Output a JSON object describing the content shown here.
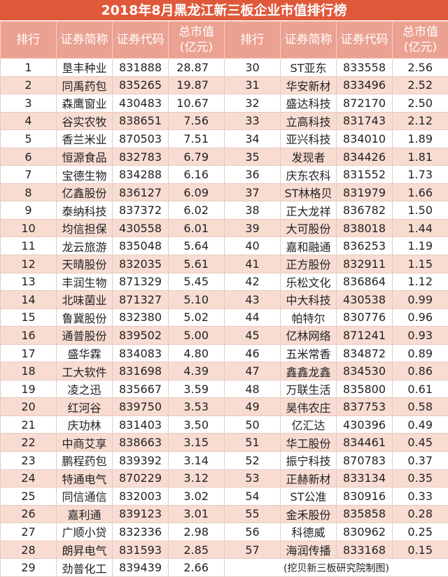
{
  "title": "2018年8月黑龙江新三板企业市值排行榜",
  "headers": {
    "rank": "排行",
    "name": "证券简称",
    "code": "证券代码",
    "value_line1": "总市值",
    "value_line2": "(亿元)"
  },
  "colors": {
    "title_bg": "#e0583a",
    "header_bg": "#eba192",
    "stripe": "#f8dcd2"
  },
  "rows": [
    {
      "rank": "1",
      "name": "垦丰种业",
      "code": "831888",
      "value": "28.87"
    },
    {
      "rank": "2",
      "name": "同禹药包",
      "code": "835265",
      "value": "19.87"
    },
    {
      "rank": "3",
      "name": "森鹰窗业",
      "code": "430483",
      "value": "10.67"
    },
    {
      "rank": "4",
      "name": "谷实农牧",
      "code": "838651",
      "value": "7.56"
    },
    {
      "rank": "5",
      "name": "香兰米业",
      "code": "870503",
      "value": "7.51"
    },
    {
      "rank": "6",
      "name": "恒源食品",
      "code": "832783",
      "value": "6.79"
    },
    {
      "rank": "7",
      "name": "宝德生物",
      "code": "834288",
      "value": "6.16"
    },
    {
      "rank": "8",
      "name": "亿鑫股份",
      "code": "836127",
      "value": "6.09"
    },
    {
      "rank": "9",
      "name": "泰纳科技",
      "code": "837372",
      "value": "6.02"
    },
    {
      "rank": "10",
      "name": "均信担保",
      "code": "430558",
      "value": "6.01"
    },
    {
      "rank": "11",
      "name": "龙云旅游",
      "code": "835048",
      "value": "5.64"
    },
    {
      "rank": "12",
      "name": "天晴股份",
      "code": "832035",
      "value": "5.61"
    },
    {
      "rank": "13",
      "name": "丰润生物",
      "code": "871329",
      "value": "5.45"
    },
    {
      "rank": "14",
      "name": "北味菌业",
      "code": "871327",
      "value": "5.10"
    },
    {
      "rank": "15",
      "name": "鲁冀股份",
      "code": "832380",
      "value": "5.02"
    },
    {
      "rank": "16",
      "name": "通普股份",
      "code": "839502",
      "value": "5.00"
    },
    {
      "rank": "17",
      "name": "盛华霖",
      "code": "834083",
      "value": "4.80"
    },
    {
      "rank": "18",
      "name": "工大软件",
      "code": "831698",
      "value": "4.39"
    },
    {
      "rank": "19",
      "name": "凌之迅",
      "code": "835667",
      "value": "3.59"
    },
    {
      "rank": "20",
      "name": "红河谷",
      "code": "839750",
      "value": "3.53"
    },
    {
      "rank": "21",
      "name": "庆功林",
      "code": "831403",
      "value": "3.50"
    },
    {
      "rank": "22",
      "name": "中商艾享",
      "code": "838663",
      "value": "3.15"
    },
    {
      "rank": "23",
      "name": "鹏程药包",
      "code": "839392",
      "value": "3.14"
    },
    {
      "rank": "24",
      "name": "特通电气",
      "code": "870229",
      "value": "3.12"
    },
    {
      "rank": "25",
      "name": "同信通信",
      "code": "832003",
      "value": "3.02"
    },
    {
      "rank": "26",
      "name": "嘉利通",
      "code": "839123",
      "value": "3.01"
    },
    {
      "rank": "27",
      "name": "广顺小贷",
      "code": "832336",
      "value": "2.98"
    },
    {
      "rank": "28",
      "name": "朗昇电气",
      "code": "831593",
      "value": "2.85"
    },
    {
      "rank": "29",
      "name": "劲普化工",
      "code": "839439",
      "value": "2.66"
    },
    {
      "rank": "30",
      "name": "ST亚东",
      "code": "833558",
      "value": "2.56"
    },
    {
      "rank": "31",
      "name": "华安新材",
      "code": "833496",
      "value": "2.52"
    },
    {
      "rank": "32",
      "name": "盛达科技",
      "code": "872170",
      "value": "2.50"
    },
    {
      "rank": "33",
      "name": "立高科技",
      "code": "831743",
      "value": "2.12"
    },
    {
      "rank": "34",
      "name": "亚兴科技",
      "code": "834010",
      "value": "1.89"
    },
    {
      "rank": "35",
      "name": "发现者",
      "code": "834426",
      "value": "1.81"
    },
    {
      "rank": "36",
      "name": "庆东农科",
      "code": "831552",
      "value": "1.73"
    },
    {
      "rank": "37",
      "name": "ST林格贝",
      "code": "831979",
      "value": "1.66"
    },
    {
      "rank": "38",
      "name": "正大龙祥",
      "code": "836782",
      "value": "1.50"
    },
    {
      "rank": "39",
      "name": "大可股份",
      "code": "838018",
      "value": "1.44"
    },
    {
      "rank": "40",
      "name": "嘉和融通",
      "code": "836253",
      "value": "1.19"
    },
    {
      "rank": "41",
      "name": "正方股份",
      "code": "832911",
      "value": "1.15"
    },
    {
      "rank": "42",
      "name": "乐松文化",
      "code": "836864",
      "value": "1.12"
    },
    {
      "rank": "43",
      "name": "中大科技",
      "code": "430538",
      "value": "0.99"
    },
    {
      "rank": "44",
      "name": "帕特尔",
      "code": "830776",
      "value": "0.96"
    },
    {
      "rank": "45",
      "name": "亿林网络",
      "code": "871241",
      "value": "0.93"
    },
    {
      "rank": "46",
      "name": "五米常香",
      "code": "834872",
      "value": "0.89"
    },
    {
      "rank": "47",
      "name": "鑫鑫龙鑫",
      "code": "834530",
      "value": "0.86"
    },
    {
      "rank": "48",
      "name": "万联生活",
      "code": "835800",
      "value": "0.61"
    },
    {
      "rank": "49",
      "name": "昊伟农庄",
      "code": "837753",
      "value": "0.58"
    },
    {
      "rank": "50",
      "name": "亿汇达",
      "code": "430396",
      "value": "0.49"
    },
    {
      "rank": "51",
      "name": "华工股份",
      "code": "834461",
      "value": "0.45"
    },
    {
      "rank": "52",
      "name": "振宁科技",
      "code": "870783",
      "value": "0.37"
    },
    {
      "rank": "53",
      "name": "正赫新材",
      "code": "833134",
      "value": "0.35"
    },
    {
      "rank": "54",
      "name": "ST公准",
      "code": "830916",
      "value": "0.33"
    },
    {
      "rank": "55",
      "name": "金禾股份",
      "code": "835858",
      "value": "0.28"
    },
    {
      "rank": "56",
      "name": "科德威",
      "code": "830962",
      "value": "0.25"
    },
    {
      "rank": "57",
      "name": "海润传播",
      "code": "833168",
      "value": "0.15"
    }
  ],
  "footer": "(挖贝新三板研究院制图)"
}
